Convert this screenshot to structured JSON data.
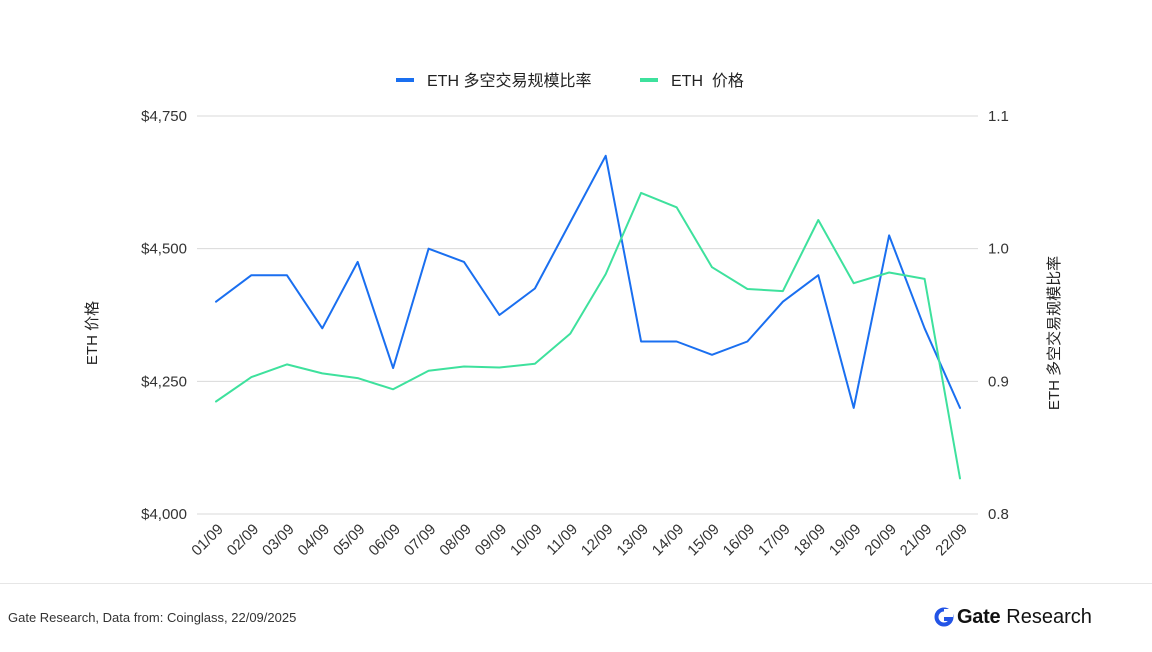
{
  "chart_data": {
    "type": "line",
    "categories": [
      "01/09",
      "02/09",
      "03/09",
      "04/09",
      "05/09",
      "06/09",
      "07/09",
      "08/09",
      "09/09",
      "10/09",
      "11/09",
      "12/09",
      "13/09",
      "14/09",
      "15/09",
      "16/09",
      "17/09",
      "18/09",
      "19/09",
      "20/09",
      "21/09",
      "22/09"
    ],
    "series": [
      {
        "name": "ETH 多空交易规模比率",
        "axis": "right",
        "color": "#1a6ff0",
        "values": [
          0.96,
          0.98,
          0.98,
          0.94,
          0.99,
          0.91,
          1.0,
          0.99,
          0.95,
          0.97,
          1.02,
          1.07,
          0.93,
          0.93,
          0.92,
          0.93,
          0.96,
          0.98,
          0.88,
          1.01,
          0.94,
          0.88
        ]
      },
      {
        "name": "ETH  价格",
        "axis": "left",
        "color": "#3ee19d",
        "values": [
          4212,
          4258,
          4282,
          4265,
          4256,
          4235,
          4270,
          4278,
          4276,
          4283,
          4340,
          4452,
          4605,
          4578,
          4465,
          4424,
          4420,
          4554,
          4435,
          4455,
          4443,
          4067
        ]
      }
    ],
    "y_left": {
      "label": "ETH 价格",
      "range": [
        4000,
        4750
      ],
      "ticks": [
        4000,
        4250,
        4500,
        4750
      ],
      "tick_labels": [
        "$4,000",
        "$4,250",
        "$4,500",
        "$4,750"
      ]
    },
    "y_right": {
      "label": "ETH 多空交易规模比率",
      "range": [
        0.8,
        1.1
      ],
      "ticks": [
        0.8,
        0.9,
        1.0,
        1.1
      ],
      "tick_labels": [
        "0.8",
        "0.9",
        "1.0",
        "1.1"
      ]
    },
    "grid": true,
    "legend_position": "top-center"
  },
  "footer": {
    "source": "Gate Research, Data from: Coinglass, 22/09/2025",
    "brand_name": "Gate",
    "brand_sub": "Research",
    "brand_color": "#2354e6"
  }
}
